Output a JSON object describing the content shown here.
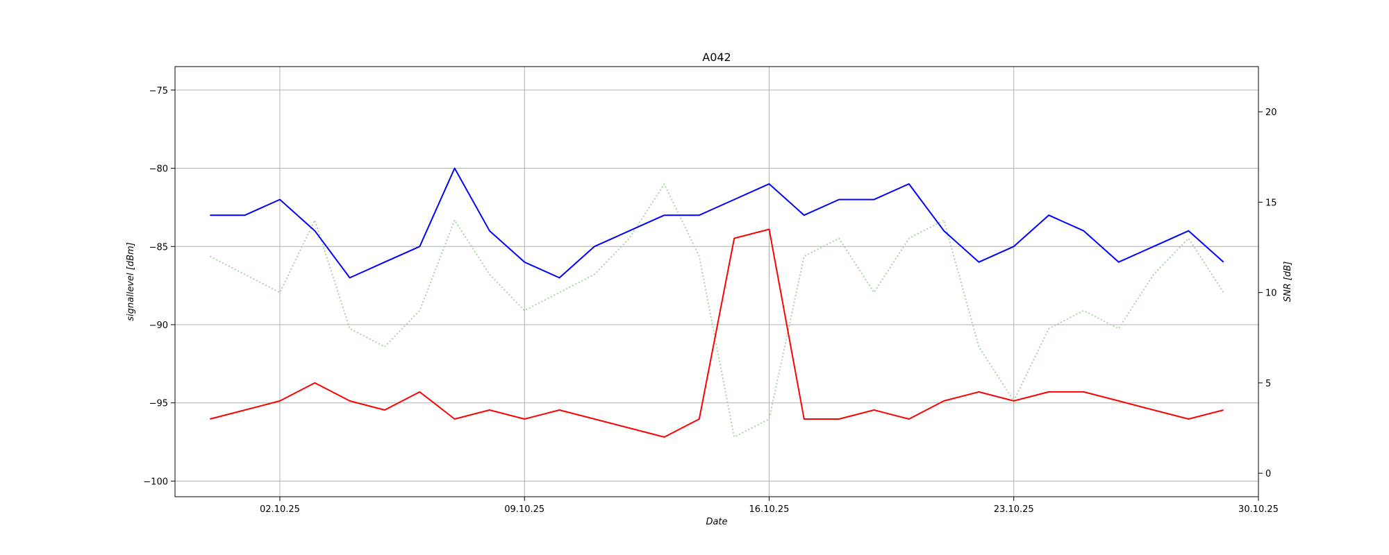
{
  "chart_data": {
    "type": "line",
    "title": "A042",
    "xlabel": "Date",
    "ylabel_left": "signallevel [dBm]",
    "ylabel_right": "SNR [dB]",
    "x_range": [
      "2025-09-29",
      "2025-10-30"
    ],
    "y_left_range": [
      -101,
      -73.5
    ],
    "y_right_range": [
      -1.3,
      22.5
    ],
    "x_ticks": [
      {
        "date": "2025-10-02",
        "label": "02.10.25"
      },
      {
        "date": "2025-10-09",
        "label": "09.10.25"
      },
      {
        "date": "2025-10-16",
        "label": "16.10.25"
      },
      {
        "date": "2025-10-23",
        "label": "23.10.25"
      },
      {
        "date": "2025-10-30",
        "label": "30.10.25"
      }
    ],
    "y_left_ticks": [
      {
        "value": -75,
        "label": "−75"
      },
      {
        "value": -80,
        "label": "−80"
      },
      {
        "value": -85,
        "label": "−85"
      },
      {
        "value": -90,
        "label": "−90"
      },
      {
        "value": -95,
        "label": "−95"
      },
      {
        "value": -100,
        "label": "−100"
      }
    ],
    "y_right_ticks": [
      {
        "value": 20,
        "label": "20"
      },
      {
        "value": 15,
        "label": "15"
      },
      {
        "value": 10,
        "label": "10"
      },
      {
        "value": 5,
        "label": "5"
      },
      {
        "value": 0,
        "label": "0"
      }
    ],
    "grid": true,
    "series": [
      {
        "axis": "right",
        "color": "#a8d5a2",
        "style": "dotted",
        "x": [
          "2025-09-30",
          "2025-10-01",
          "2025-10-02",
          "2025-10-03",
          "2025-10-04",
          "2025-10-05",
          "2025-10-06",
          "2025-10-07",
          "2025-10-08",
          "2025-10-09",
          "2025-10-10",
          "2025-10-11",
          "2025-10-12",
          "2025-10-13",
          "2025-10-14",
          "2025-10-15",
          "2025-10-16",
          "2025-10-17",
          "2025-10-18",
          "2025-10-19",
          "2025-10-20",
          "2025-10-21",
          "2025-10-22",
          "2025-10-23",
          "2025-10-24",
          "2025-10-25",
          "2025-10-26",
          "2025-10-27",
          "2025-10-28",
          "2025-10-29"
        ],
        "y": [
          12,
          11,
          10,
          14,
          8,
          7,
          9,
          14,
          11,
          9,
          10,
          11,
          13,
          16,
          12,
          2,
          3,
          12,
          13,
          10,
          13,
          14,
          7,
          4,
          8,
          9,
          8,
          11,
          13,
          10
        ]
      },
      {
        "axis": "left",
        "color": "#0000ff",
        "style": "solid",
        "x": [
          "2025-09-30",
          "2025-10-01",
          "2025-10-02",
          "2025-10-03",
          "2025-10-04",
          "2025-10-05",
          "2025-10-06",
          "2025-10-07",
          "2025-10-08",
          "2025-10-09",
          "2025-10-10",
          "2025-10-11",
          "2025-10-12",
          "2025-10-13",
          "2025-10-14",
          "2025-10-15",
          "2025-10-16",
          "2025-10-17",
          "2025-10-18",
          "2025-10-19",
          "2025-10-20",
          "2025-10-21",
          "2025-10-22",
          "2025-10-23",
          "2025-10-24",
          "2025-10-25",
          "2025-10-26",
          "2025-10-27",
          "2025-10-28",
          "2025-10-29"
        ],
        "y": [
          -83,
          -83,
          -82,
          -84,
          -87,
          -86,
          -85,
          -80,
          -84,
          -86,
          -87,
          -85,
          -84,
          -83,
          -83,
          -82,
          -81,
          -83,
          -82,
          -82,
          -81,
          -84,
          -86,
          -85,
          -83,
          -84,
          -86,
          -85,
          -84,
          -86
        ]
      },
      {
        "axis": "right",
        "color": "#ff0000",
        "style": "solid",
        "x": [
          "2025-09-30",
          "2025-10-01",
          "2025-10-02",
          "2025-10-03",
          "2025-10-04",
          "2025-10-05",
          "2025-10-06",
          "2025-10-07",
          "2025-10-08",
          "2025-10-09",
          "2025-10-10",
          "2025-10-11",
          "2025-10-12",
          "2025-10-13",
          "2025-10-14",
          "2025-10-15",
          "2025-10-16",
          "2025-10-17",
          "2025-10-18",
          "2025-10-19",
          "2025-10-20",
          "2025-10-21",
          "2025-10-22",
          "2025-10-23",
          "2025-10-24",
          "2025-10-25",
          "2025-10-26",
          "2025-10-27",
          "2025-10-28",
          "2025-10-29"
        ],
        "y": [
          3,
          3.5,
          4,
          5,
          4,
          3.5,
          4.5,
          3,
          3.5,
          3,
          3.5,
          3,
          2.5,
          2,
          3,
          13,
          13.5,
          3,
          3,
          3.5,
          3,
          4,
          4.5,
          4,
          4.5,
          4.5,
          4,
          3.5,
          3,
          3.5
        ]
      }
    ]
  }
}
